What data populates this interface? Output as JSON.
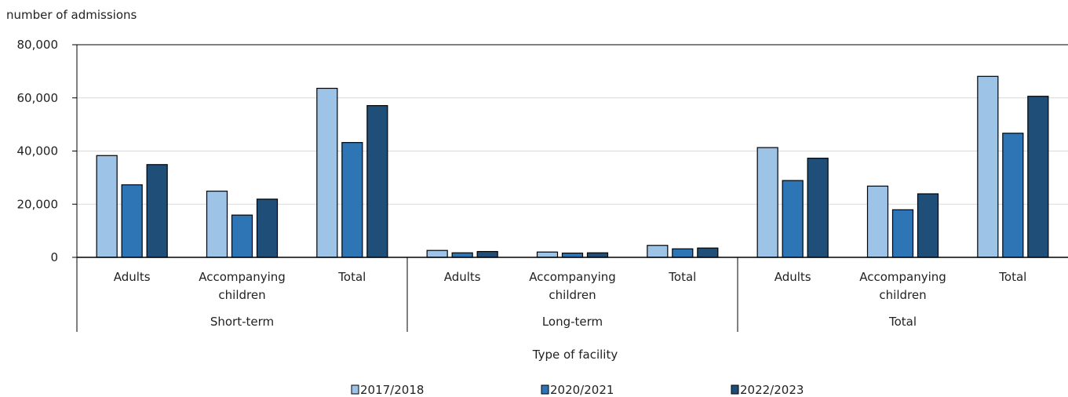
{
  "chart_data": {
    "type": "bar",
    "title": "",
    "ylabel": "number of admissions",
    "xlabel": "Type of facility",
    "ylim": [
      0,
      80000
    ],
    "yticks": [
      0,
      20000,
      40000,
      60000,
      80000
    ],
    "ytick_labels": [
      "0",
      "20,000",
      "40,000",
      "60,000",
      "80,000"
    ],
    "grid": true,
    "legend_position": "bottom",
    "groups": [
      {
        "label": "Short-term",
        "categories": [
          "Adults",
          "Accompanying children",
          "Total"
        ]
      },
      {
        "label": "Long-term",
        "categories": [
          "Adults",
          "Accompanying children",
          "Total"
        ]
      },
      {
        "label": "Total",
        "categories": [
          "Adults",
          "Accompanying children",
          "Total"
        ]
      }
    ],
    "category_lines": [
      [
        "Adults"
      ],
      [
        "Accompanying",
        "children"
      ],
      [
        "Total"
      ],
      [
        "Adults"
      ],
      [
        "Accompanying",
        "children"
      ],
      [
        "Total"
      ],
      [
        "Adults"
      ],
      [
        "Accompanying",
        "children"
      ],
      [
        "Total"
      ]
    ],
    "series": [
      {
        "name": "2017/2018",
        "color": "#9DC3E6",
        "values": [
          38300,
          24900,
          63600,
          2600,
          2000,
          4500,
          41300,
          26800,
          68100
        ]
      },
      {
        "name": "2020/2021",
        "color": "#2E75B6",
        "values": [
          27300,
          15900,
          43200,
          1700,
          1600,
          3200,
          28900,
          17900,
          46700
        ]
      },
      {
        "name": "2022/2023",
        "color": "#1F4E79",
        "values": [
          34900,
          21900,
          57100,
          2200,
          1700,
          3500,
          37300,
          23900,
          60600
        ]
      }
    ]
  }
}
